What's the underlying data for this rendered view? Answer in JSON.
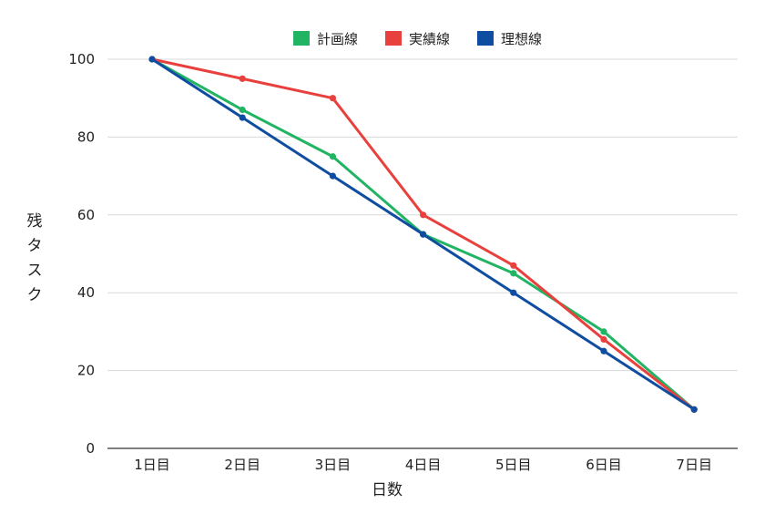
{
  "chart_data": {
    "type": "line",
    "title": "",
    "xlabel": "日数",
    "ylabel": "残タスク",
    "categories": [
      "1日目",
      "2日目",
      "3日目",
      "4日目",
      "5日目",
      "6日目",
      "7日目"
    ],
    "ylim": [
      0,
      100
    ],
    "yticks": [
      0,
      20,
      40,
      60,
      80,
      100
    ],
    "grid": true,
    "legend_position": "top-center",
    "series": [
      {
        "name": "計画線",
        "color": "#20b463",
        "values": [
          100,
          87,
          75,
          55,
          45,
          30,
          10
        ]
      },
      {
        "name": "実績線",
        "color": "#e8413d",
        "values": [
          100,
          95,
          90,
          60,
          47,
          28,
          10
        ]
      },
      {
        "name": "理想線",
        "color": "#0f4da0",
        "values": [
          100,
          85,
          70,
          55,
          40,
          25,
          10
        ]
      }
    ]
  }
}
